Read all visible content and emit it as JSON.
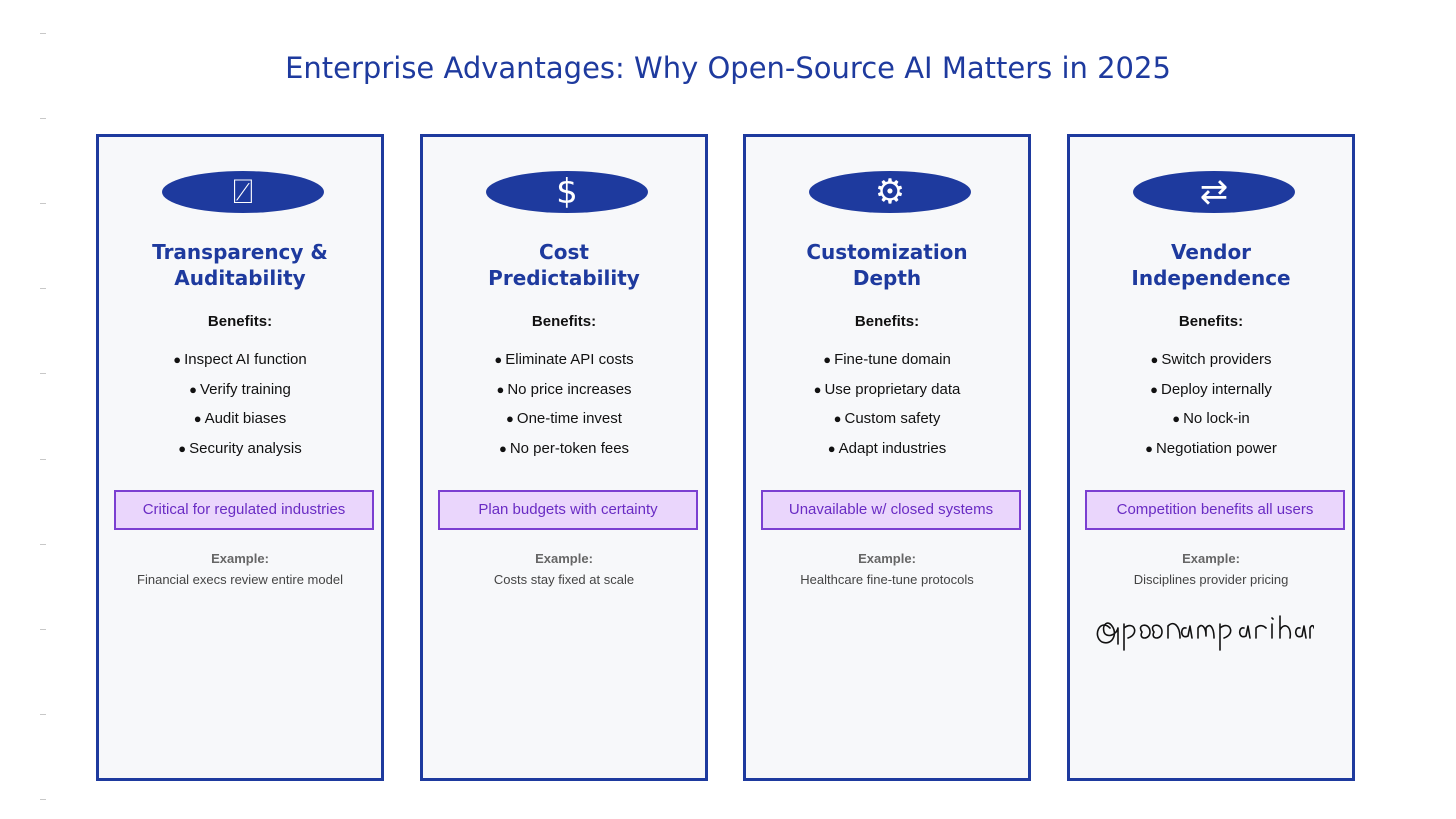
{
  "title": "Enterprise Advantages: Why Open-Source AI Matters in 2025",
  "cards": [
    {
      "icon": "slashed-square-icon",
      "icon_glyph": "⍁",
      "title_line1": "Transparency &",
      "title_line2": "Auditability",
      "benefits_label": "Benefits:",
      "benefits": [
        "Inspect AI function",
        "Verify training",
        "Audit biases",
        "Security analysis"
      ],
      "callout": "Critical for regulated industries",
      "example_label": "Example:",
      "example_text": "Financial execs review entire model"
    },
    {
      "icon": "dollar-icon",
      "icon_glyph": "$",
      "title_line1": "Cost",
      "title_line2": "Predictability",
      "benefits_label": "Benefits:",
      "benefits": [
        "Eliminate API costs",
        "No price increases",
        "One-time invest",
        "No per-token fees"
      ],
      "callout": "Plan budgets with certainty",
      "example_label": "Example:",
      "example_text": "Costs stay fixed at scale"
    },
    {
      "icon": "gear-icon",
      "icon_glyph": "⚙",
      "title_line1": "Customization",
      "title_line2": "Depth",
      "benefits_label": "Benefits:",
      "benefits": [
        "Fine-tune domain",
        "Use proprietary data",
        "Custom safety",
        "Adapt industries"
      ],
      "callout": "Unavailable w/ closed systems",
      "example_label": "Example:",
      "example_text": "Healthcare fine-tune protocols"
    },
    {
      "icon": "swap-arrows-icon",
      "icon_glyph": "⇄",
      "title_line1": "Vendor",
      "title_line2": "Independence",
      "benefits_label": "Benefits:",
      "benefits": [
        "Switch providers",
        "Deploy internally",
        "No lock-in",
        "Negotiation power"
      ],
      "callout": "Competition benefits all users",
      "example_label": "Example:",
      "example_text": "Disciplines provider pricing"
    }
  ],
  "signature": "@poonamparihar",
  "colors": {
    "primary": "#1e3a9e",
    "callout_border": "#7b3fd1",
    "callout_fill": "#ead6fc",
    "card_fill": "#f7f8fa"
  }
}
